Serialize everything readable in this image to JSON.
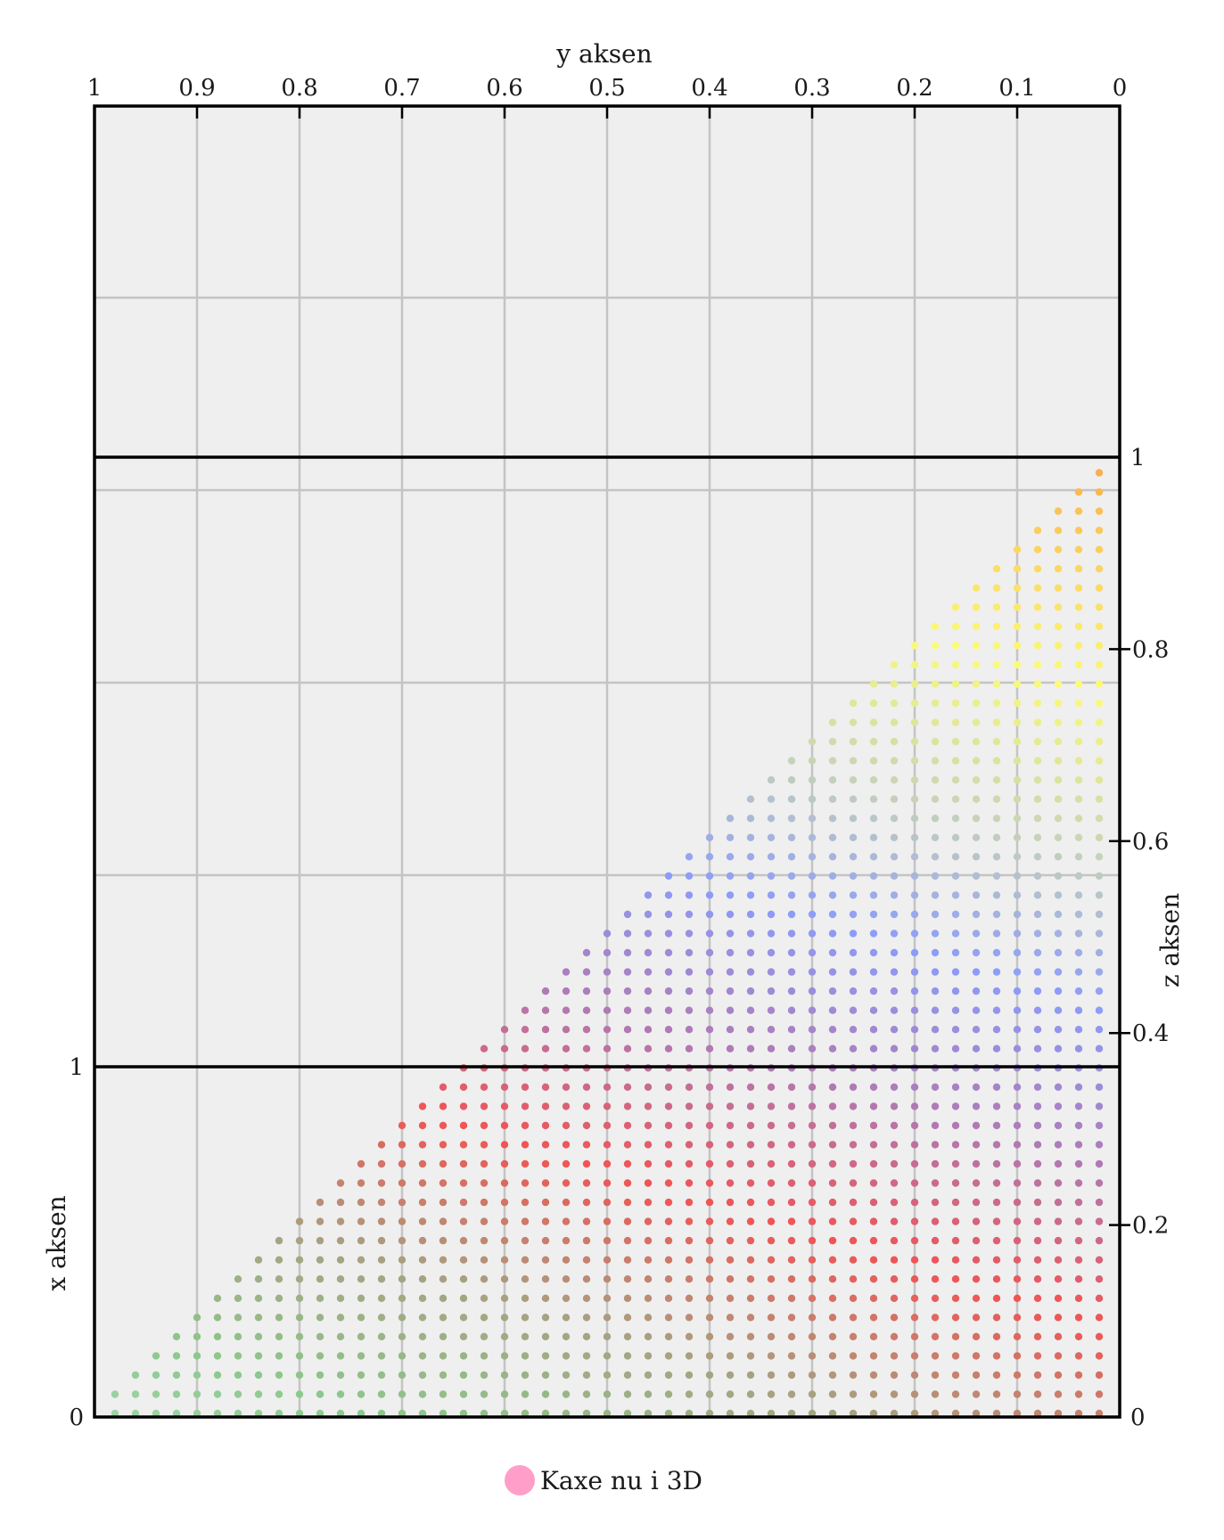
{
  "chart_data": {
    "type": "scatter",
    "title": "",
    "y_axis": {
      "label": "y aksen",
      "position": "top",
      "range": [
        1,
        0
      ],
      "ticks": [
        "1",
        "0.9",
        "0.8",
        "0.7",
        "0.6",
        "0.5",
        "0.4",
        "0.3",
        "0.2",
        "0.1",
        "0"
      ]
    },
    "z_axis": {
      "label": "z aksen",
      "position": "right",
      "range": [
        0,
        1
      ],
      "ticks": [
        "0",
        "0.2",
        "0.4",
        "0.6",
        "0.8",
        "1"
      ]
    },
    "x_axis": {
      "label": "x aksen",
      "position": "left",
      "range": [
        0,
        1
      ],
      "ticks": [
        "0",
        "1"
      ]
    },
    "grid": true,
    "legend": {
      "placement": "bottom-center",
      "entries": [
        {
          "name": "Kaxe nu i 3D",
          "color": "#ff9ec9"
        }
      ]
    },
    "series": [
      {
        "name": "Kaxe nu i 3D",
        "kind": "simplex-grid",
        "description_of_points": "all (x, y, z) with x + y + z = 1 on a 1/50 grid, x,y,z >= 0",
        "y_values": [
          0.98,
          0.96,
          0.94,
          0.92,
          0.9,
          0.88,
          0.86,
          0.84,
          0.82,
          0.8,
          0.78,
          0.76,
          0.74,
          0.72,
          0.7,
          0.68,
          0.66,
          0.64,
          0.62,
          0.6,
          0.58,
          0.56,
          0.54,
          0.52,
          0.5,
          0.48,
          0.46,
          0.44,
          0.42,
          0.4,
          0.38,
          0.36,
          0.34,
          0.32,
          0.3,
          0.28,
          0.26,
          0.24,
          0.22,
          0.2,
          0.18,
          0.16,
          0.14,
          0.12,
          0.1,
          0.08,
          0.06,
          0.04,
          0.02
        ],
        "step": 0.02
      }
    ],
    "colors": {
      "background": "#efefef",
      "grid": "#c4c4c4",
      "frame": "#000000",
      "gradient": [
        "#f18a3a",
        "#fbc85a",
        "#fbfc78",
        "#c9d4b6",
        "#8c9cfb",
        "#b07ab4",
        "#f15454",
        "#a8a080",
        "#8cc88c",
        "#aee0c0"
      ]
    }
  }
}
